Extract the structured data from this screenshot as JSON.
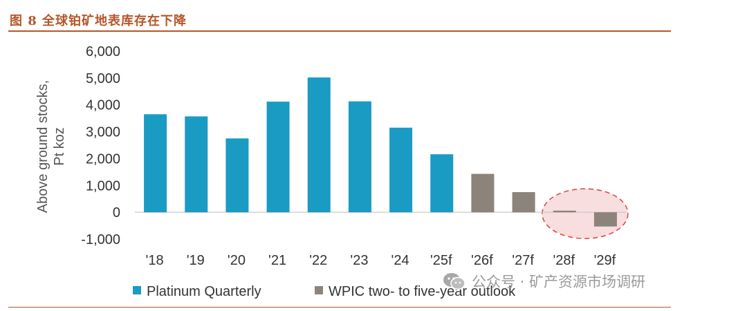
{
  "figure": {
    "title": "图 8 全球铂矿地表库存在下降"
  },
  "watermark": {
    "text": "公众号 · 矿产资源市场调研",
    "icon": "wechat-icon"
  },
  "colors": {
    "platinum_quarterly": "#1a9bc4",
    "wpic_outlook": "#8c837a",
    "highlight_fill": "#f8dede",
    "highlight_stroke": "#e04a4a",
    "accent": "#b5562a"
  },
  "chart_data": {
    "type": "bar",
    "title": "",
    "xlabel": "",
    "ylabel": "Above ground stocks, Pt koz",
    "ylabel_lines": [
      "Above ground stocks,",
      "Pt koz"
    ],
    "ylim": [
      -1000,
      6000
    ],
    "yticks": [
      6000,
      5000,
      4000,
      3000,
      2000,
      1000,
      0,
      -1000
    ],
    "ytick_labels": [
      "6,000",
      "5,000",
      "4,000",
      "3,000",
      "2,000",
      "1,000",
      "0",
      "-1,000"
    ],
    "grid": false,
    "legend_position": "bottom",
    "categories": [
      "'18",
      "'19",
      "'20",
      "'21",
      "'22",
      "'23",
      "'24",
      "'25f",
      "'26f",
      "'27f",
      "'28f",
      "'29f"
    ],
    "series": [
      {
        "name": "Platinum Quarterly",
        "values": [
          3650,
          3570,
          2750,
          4120,
          5020,
          4130,
          3150,
          2160,
          null,
          null,
          null,
          null
        ]
      },
      {
        "name": "WPIC two- to five-year outlook",
        "values": [
          null,
          null,
          null,
          null,
          null,
          null,
          null,
          null,
          1430,
          750,
          60,
          -530
        ]
      }
    ],
    "highlight": {
      "categories": [
        "'28f",
        "'29f"
      ],
      "shape": "dashed ellipse"
    }
  }
}
